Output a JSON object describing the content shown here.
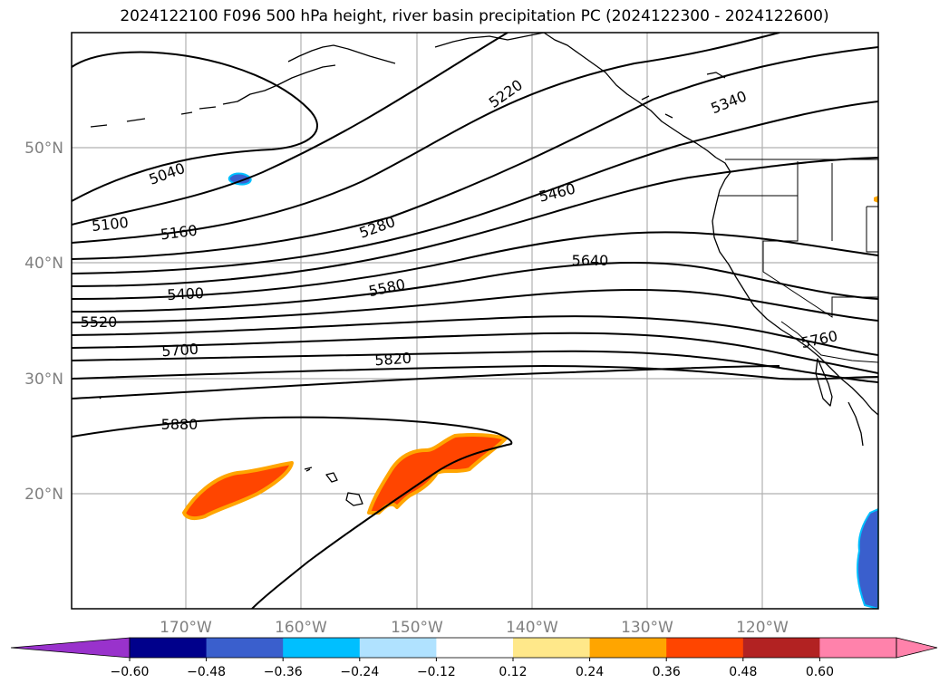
{
  "title": "2024122100 F096 500 hPa height, river basin precipitation PC (2024122300 - 2024122600)",
  "map": {
    "lon_ticks": [
      "170°W",
      "160°W",
      "150°W",
      "140°W",
      "130°W",
      "120°W"
    ],
    "lat_ticks": [
      "50°N",
      "40°N",
      "30°N",
      "20°N"
    ],
    "contour_labels": [
      "5040",
      "5100",
      "5160",
      "5220",
      "5280",
      "5340",
      "5400",
      "5460",
      "5520",
      "5580",
      "5640",
      "5700",
      "5760",
      "5820",
      "5880"
    ],
    "precip_positive_color": "#ff4500",
    "precip_edge_color": "#ffa500",
    "precip_negative_color": "#3a5fcd"
  },
  "colorbar": {
    "labels": [
      "−0.60",
      "−0.48",
      "−0.36",
      "−0.24",
      "−0.12",
      "0.12",
      "0.24",
      "0.36",
      "0.48",
      "0.60"
    ],
    "colors": [
      "#9932cc",
      "#00008b",
      "#3a5fcd",
      "#00bfff",
      "#b0e2ff",
      "#ffffff",
      "#ffe88a",
      "#ffa500",
      "#ff4500",
      "#b22222",
      "#ff82ab",
      "#ff82ab"
    ]
  }
}
